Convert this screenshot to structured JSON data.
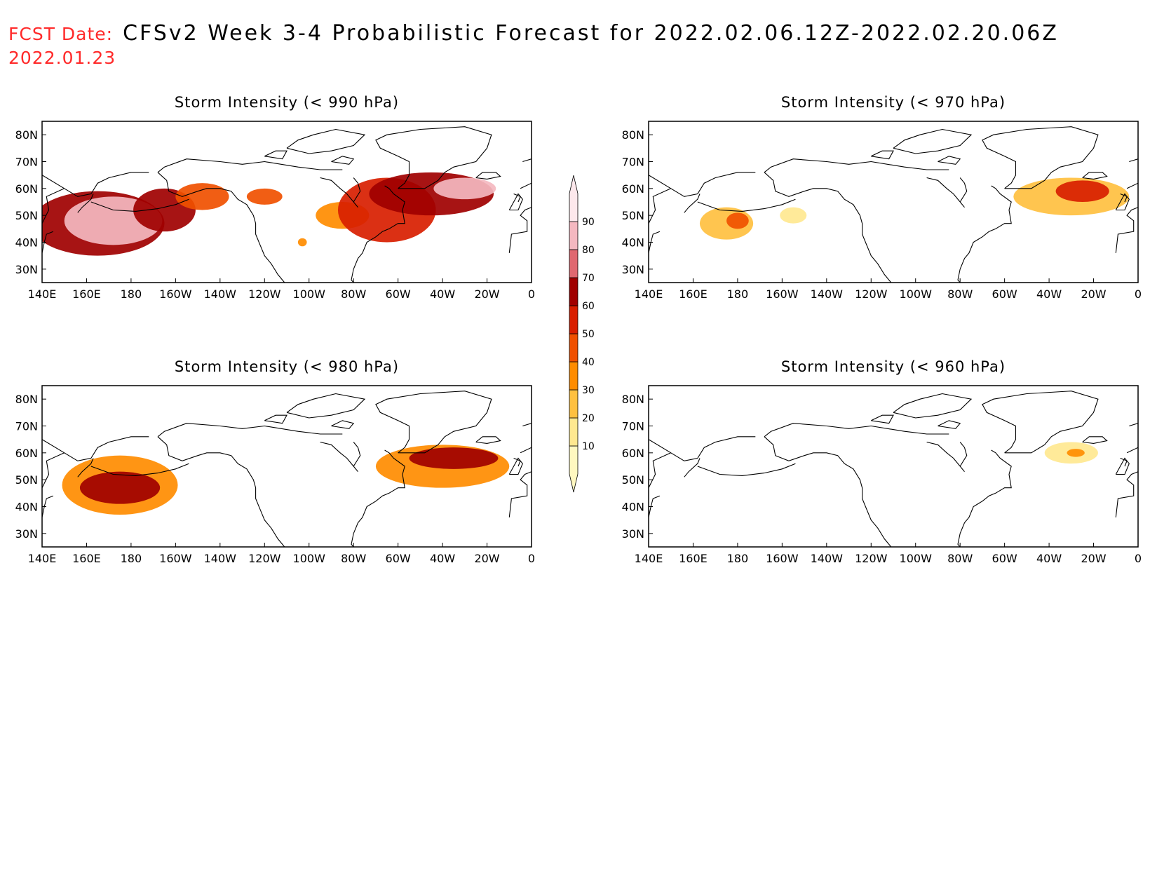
{
  "header": {
    "fcst_label": "FCST Date:",
    "fcst_date": "2022.01.23",
    "title": "CFSv2 Week 3-4 Probabilistic Forecast for 2022.02.06.12Z-2022.02.20.06Z"
  },
  "axes": {
    "lon_labels": [
      "140E",
      "160E",
      "180",
      "160W",
      "140W",
      "120W",
      "100W",
      "80W",
      "60W",
      "40W",
      "20W",
      "0"
    ],
    "lat_labels": [
      "80N",
      "70N",
      "60N",
      "50N",
      "40N",
      "30N"
    ],
    "lat_values": [
      80,
      70,
      60,
      50,
      40,
      30
    ],
    "lon_range": [
      140,
      360
    ],
    "lat_range": [
      25,
      85
    ]
  },
  "colorbar": {
    "levels": [
      10,
      20,
      30,
      40,
      50,
      60,
      70,
      80,
      90
    ],
    "colors": [
      "#fff8c0",
      "#ffe890",
      "#ffc040",
      "#ff8c00",
      "#f05000",
      "#d81e00",
      "#a00000",
      "#e06870",
      "#f4b8c0",
      "#fde8ec"
    ]
  },
  "panels": [
    {
      "id": "p990",
      "title": "Storm Intensity (< 990 hPa)",
      "blobs": [
        {
          "lon": 165,
          "lat": 47,
          "rx": 30,
          "ry": 12,
          "level": 6
        },
        {
          "lon": 172,
          "lat": 48,
          "rx": 22,
          "ry": 9,
          "level": 8
        },
        {
          "lon": 195,
          "lat": 52,
          "rx": 14,
          "ry": 8,
          "level": 6
        },
        {
          "lon": 212,
          "lat": 57,
          "rx": 12,
          "ry": 5,
          "level": 4
        },
        {
          "lon": 240,
          "lat": 57,
          "rx": 8,
          "ry": 3,
          "level": 4
        },
        {
          "lon": 257,
          "lat": 40,
          "rx": 2,
          "ry": 1.5,
          "level": 3
        },
        {
          "lon": 275,
          "lat": 50,
          "rx": 12,
          "ry": 5,
          "level": 3
        },
        {
          "lon": 295,
          "lat": 52,
          "rx": 22,
          "ry": 12,
          "level": 5
        },
        {
          "lon": 315,
          "lat": 58,
          "rx": 28,
          "ry": 8,
          "level": 6
        },
        {
          "lon": 330,
          "lat": 60,
          "rx": 14,
          "ry": 4,
          "level": 8
        }
      ]
    },
    {
      "id": "p970",
      "title": "Storm Intensity (< 970 hPa)",
      "blobs": [
        {
          "lon": 175,
          "lat": 47,
          "rx": 12,
          "ry": 6,
          "level": 2
        },
        {
          "lon": 180,
          "lat": 48,
          "rx": 5,
          "ry": 3,
          "level": 4
        },
        {
          "lon": 205,
          "lat": 50,
          "rx": 6,
          "ry": 3,
          "level": 1
        },
        {
          "lon": 330,
          "lat": 57,
          "rx": 26,
          "ry": 7,
          "level": 2
        },
        {
          "lon": 335,
          "lat": 59,
          "rx": 12,
          "ry": 4,
          "level": 5
        }
      ]
    },
    {
      "id": "p980",
      "title": "Storm Intensity (< 980 hPa)",
      "blobs": [
        {
          "lon": 175,
          "lat": 48,
          "rx": 26,
          "ry": 11,
          "level": 3
        },
        {
          "lon": 175,
          "lat": 47,
          "rx": 18,
          "ry": 6,
          "level": 6
        },
        {
          "lon": 320,
          "lat": 55,
          "rx": 30,
          "ry": 8,
          "level": 3
        },
        {
          "lon": 325,
          "lat": 58,
          "rx": 20,
          "ry": 4,
          "level": 6
        }
      ]
    },
    {
      "id": "p960",
      "title": "Storm Intensity (< 960 hPa)",
      "blobs": [
        {
          "lon": 330,
          "lat": 60,
          "rx": 12,
          "ry": 4,
          "level": 1
        },
        {
          "lon": 332,
          "lat": 60,
          "rx": 4,
          "ry": 1.5,
          "level": 3
        }
      ]
    }
  ]
}
